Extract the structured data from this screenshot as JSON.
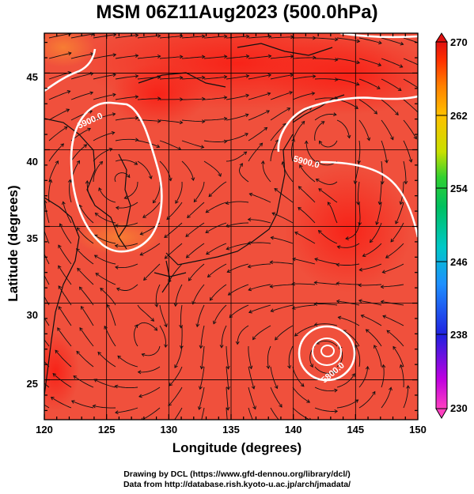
{
  "title": "MSM 06Z11Aug2023 (500.0hPa)",
  "x_axis": {
    "label": "Longitude (degrees)",
    "range": [
      120,
      150
    ],
    "ticks": [
      "120",
      "125",
      "130",
      "135",
      "140",
      "145",
      "150"
    ]
  },
  "y_axis": {
    "label": "Latitude  (degrees)",
    "range": [
      22.4,
      47.6
    ],
    "ticks": [
      "25",
      "30",
      "35",
      "40",
      "45"
    ]
  },
  "colorbar": {
    "range": [
      230,
      270
    ],
    "ticks": [
      "270",
      "262",
      "254",
      "246",
      "238",
      "230"
    ],
    "colors": [
      "#ff40c0",
      "#c000e0",
      "#2020e0",
      "#1e90ff",
      "#00c8c8",
      "#00c060",
      "#30d030",
      "#c8e000",
      "#ffc000",
      "#ff8000",
      "#ff3000",
      "#e01010"
    ]
  },
  "map": {
    "field_color": "#f0503c",
    "contours": [
      {
        "label": "5900.0",
        "color": "#ffffff"
      },
      {
        "label": "5900.0",
        "color": "#ffffff"
      },
      {
        "label": "5800.0",
        "color": "#ffffff"
      }
    ]
  },
  "credits": [
    "Drawing by DCL (https://www.gfd-dennou.org/library/dcl/)",
    "Data from http://database.rish.kyoto-u.ac.jp/arch/jmadata/"
  ]
}
